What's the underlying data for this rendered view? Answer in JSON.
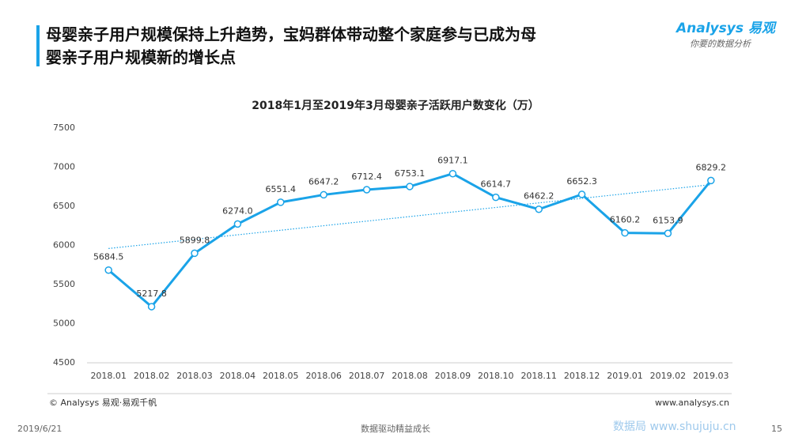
{
  "header": {
    "title_lines": [
      "母婴亲子用户规模保持上升趋势，宝妈群体带动整个家庭参与已成为母",
      "婴亲子用户规模新的增长点"
    ],
    "logo": "Analysys 易观",
    "logo_slogan": "你要的数据分析"
  },
  "chart_data": {
    "type": "line",
    "title": "2018年1月至2019年3月母婴亲子活跃用户数变化（万）",
    "categories": [
      "2018.01",
      "2018.02",
      "2018.03",
      "2018.04",
      "2018.05",
      "2018.06",
      "2018.07",
      "2018.08",
      "2018.09",
      "2018.10",
      "2018.11",
      "2018.12",
      "2019.01",
      "2019.02",
      "2019.03"
    ],
    "values": [
      5684.5,
      5217.8,
      5899.8,
      6274.0,
      6551.4,
      6647.2,
      6712.4,
      6753.1,
      6917.1,
      6614.7,
      6462.2,
      6652.3,
      6160.2,
      6153.9,
      6829.2
    ],
    "value_labels": [
      "5684.5",
      "5217.8",
      "5899.8",
      "6274.0",
      "6551.4",
      "6647.2",
      "6712.4",
      "6753.1",
      "6917.1",
      "6614.7",
      "6462.2",
      "6652.3",
      "6160.2",
      "6153.9",
      "6829.2"
    ],
    "color": "#1aa3e8",
    "trendline": true,
    "ylim": [
      4500,
      7500
    ],
    "yticks": [
      4500,
      5000,
      5500,
      6000,
      6500,
      7000,
      7500
    ]
  },
  "footer": {
    "source": "© Analysys 易观·易观千帆",
    "website": "www.analysys.cn",
    "date": "2019/6/21",
    "slogan": "数据驱动精益成长",
    "page": "15",
    "watermark": "数据局 www.shujuju.cn"
  }
}
